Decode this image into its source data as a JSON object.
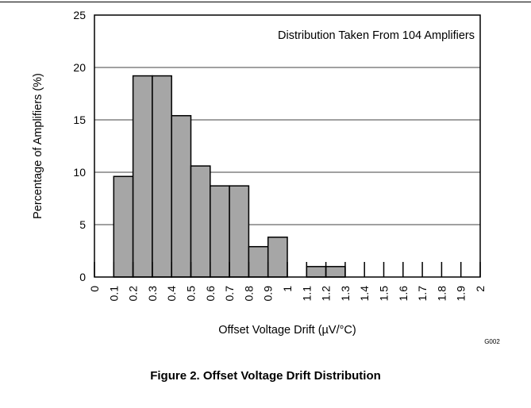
{
  "caption": "Figure 2. Offset Voltage Drift Distribution",
  "chart_data": {
    "type": "bar",
    "title": "",
    "annotation": "Distribution Taken From 104 Amplifiers",
    "xlabel": "Offset Voltage Drift (µV/°C)",
    "ylabel": "Percentage of Amplifiers (%)",
    "code": "G002",
    "ylim": [
      0,
      25
    ],
    "xlim": [
      0,
      2
    ],
    "y_ticks": [
      "0",
      "5",
      "10",
      "15",
      "20",
      "25"
    ],
    "x_ticks": [
      "0",
      "0.1",
      "0.2",
      "0.3",
      "0.4",
      "0.5",
      "0.6",
      "0.7",
      "0.8",
      "0.9",
      "1",
      "1.1",
      "1.2",
      "1.3",
      "1.4",
      "1.5",
      "1.6",
      "1.7",
      "1.8",
      "1.9",
      "2"
    ],
    "grid": "horizontal",
    "bar_width": 0.1,
    "bar_fill": "#a6a6a6",
    "bar_edge": "#000000",
    "bars": [
      {
        "x": 0.1,
        "value": 9.6
      },
      {
        "x": 0.2,
        "value": 19.2
      },
      {
        "x": 0.3,
        "value": 19.2
      },
      {
        "x": 0.4,
        "value": 15.4
      },
      {
        "x": 0.5,
        "value": 10.6
      },
      {
        "x": 0.6,
        "value": 8.7
      },
      {
        "x": 0.7,
        "value": 8.7
      },
      {
        "x": 0.8,
        "value": 2.9
      },
      {
        "x": 0.9,
        "value": 3.8
      },
      {
        "x": 1.1,
        "value": 1.0
      },
      {
        "x": 1.2,
        "value": 1.0
      }
    ]
  }
}
